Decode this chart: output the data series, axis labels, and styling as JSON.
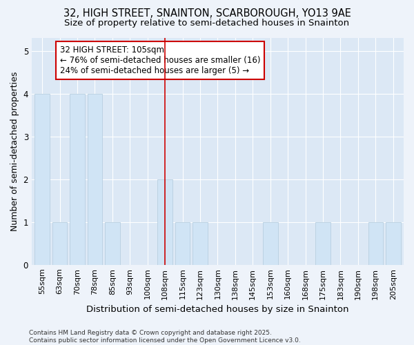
{
  "title": "32, HIGH STREET, SNAINTON, SCARBOROUGH, YO13 9AE",
  "subtitle": "Size of property relative to semi-detached houses in Snainton",
  "xlabel": "Distribution of semi-detached houses by size in Snainton",
  "ylabel": "Number of semi-detached properties",
  "categories": [
    "55sqm",
    "63sqm",
    "70sqm",
    "78sqm",
    "85sqm",
    "93sqm",
    "100sqm",
    "108sqm",
    "115sqm",
    "123sqm",
    "130sqm",
    "138sqm",
    "145sqm",
    "153sqm",
    "160sqm",
    "168sqm",
    "175sqm",
    "183sqm",
    "190sqm",
    "198sqm",
    "205sqm"
  ],
  "values": [
    4,
    1,
    4,
    4,
    1,
    0,
    0,
    2,
    1,
    1,
    0,
    0,
    0,
    1,
    0,
    0,
    1,
    0,
    0,
    1,
    1
  ],
  "bar_color": "#d0e4f5",
  "bar_edge_color": "#b8cfe0",
  "highlight_index": 7,
  "highlight_line_color": "#cc0000",
  "annotation_text": "32 HIGH STREET: 105sqm\n← 76% of semi-detached houses are smaller (16)\n24% of semi-detached houses are larger (5) →",
  "annotation_box_color": "#ffffff",
  "annotation_box_edge_color": "#cc0000",
  "ylim": [
    0,
    5.3
  ],
  "yticks": [
    0,
    1,
    2,
    3,
    4,
    5
  ],
  "footer": "Contains HM Land Registry data © Crown copyright and database right 2025.\nContains public sector information licensed under the Open Government Licence v3.0.",
  "bg_color": "#eef3fa",
  "plot_bg_color": "#dce8f5",
  "title_fontsize": 10.5,
  "subtitle_fontsize": 9.5,
  "axis_label_fontsize": 9,
  "tick_fontsize": 8,
  "annotation_fontsize": 8.5
}
